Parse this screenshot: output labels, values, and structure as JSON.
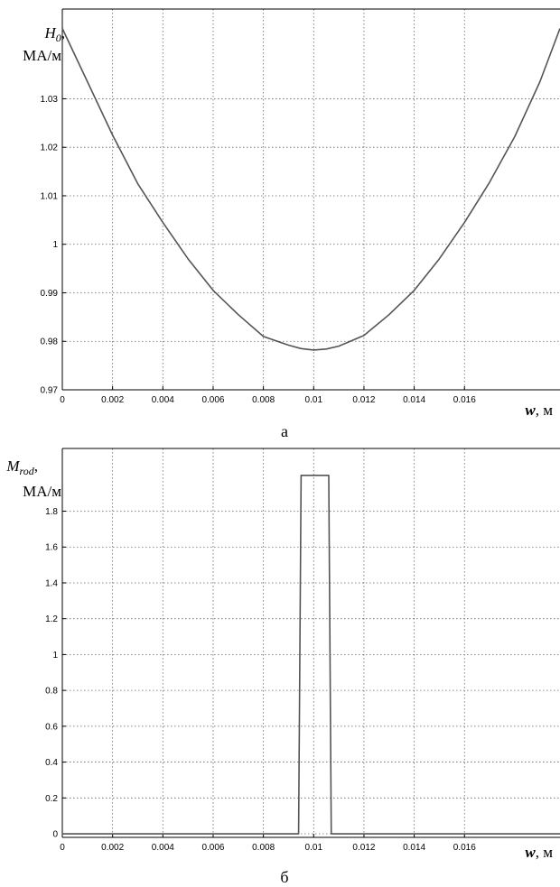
{
  "chart_data": [
    {
      "type": "line",
      "ylabel_symbol": "H",
      "ylabel_subscript": "0",
      "ylabel_suffix": ",",
      "ylabel_unit": "МА/м",
      "xlabel_symbol": "w",
      "xlabel_unit": ", м",
      "caption": "а",
      "xlim": [
        0,
        0.0198
      ],
      "ylim": [
        0.97,
        1.0485
      ],
      "xticks": [
        0,
        0.002,
        0.004,
        0.006,
        0.008,
        0.01,
        0.012,
        0.014,
        0.016
      ],
      "xtick_labels": [
        "0",
        "0.002",
        "0.004",
        "0.006",
        "0.008",
        "0.01",
        "0.012",
        "0.014",
        "0.016"
      ],
      "yticks": [
        0.97,
        0.98,
        0.99,
        1.0,
        1.01,
        1.02,
        1.03
      ],
      "ytick_labels": [
        "0.97",
        "0.98",
        "0.99",
        "1",
        "1.01",
        "1.02",
        "1.03"
      ],
      "grid": true,
      "series": [
        {
          "x": [
            0,
            0.001,
            0.002,
            0.003,
            0.004,
            0.005,
            0.006,
            0.007,
            0.008,
            0.009,
            0.0095,
            0.01,
            0.0105,
            0.011,
            0.012,
            0.013,
            0.014,
            0.015,
            0.016,
            0.017,
            0.018,
            0.019,
            0.0198
          ],
          "y": [
            1.0445,
            1.0335,
            1.0225,
            1.0125,
            1.0045,
            0.997,
            0.9905,
            0.9855,
            0.981,
            0.9792,
            0.9785,
            0.9782,
            0.9784,
            0.979,
            0.9812,
            0.9855,
            0.9905,
            0.997,
            1.0045,
            1.0128,
            1.0222,
            1.0335,
            1.0445
          ]
        }
      ]
    },
    {
      "type": "line",
      "ylabel_symbol": "M",
      "ylabel_subscript": "rod",
      "ylabel_suffix": ",",
      "ylabel_unit": "МА/м",
      "xlabel_symbol": "w",
      "xlabel_unit": ", м",
      "caption": "б",
      "xlim": [
        0,
        0.0198
      ],
      "ylim": [
        -0.02,
        2.15
      ],
      "xticks": [
        0,
        0.002,
        0.004,
        0.006,
        0.008,
        0.01,
        0.012,
        0.014,
        0.016
      ],
      "xtick_labels": [
        "0",
        "0.002",
        "0.004",
        "0.006",
        "0.008",
        "0.01",
        "0.012",
        "0.014",
        "0.016"
      ],
      "yticks": [
        0,
        0.2,
        0.4,
        0.6,
        0.8,
        1,
        1.2,
        1.4,
        1.6,
        1.8
      ],
      "ytick_labels": [
        "0",
        "0.2",
        "0.4",
        "0.6",
        "0.8",
        "1",
        "1.2",
        "1.4",
        "1.6",
        "1.8"
      ],
      "grid": true,
      "series": [
        {
          "x": [
            0,
            0.0094,
            0.0095,
            0.0106,
            0.0107,
            0.0198
          ],
          "y": [
            0,
            0,
            2.0,
            2.0,
            0,
            0
          ]
        }
      ]
    }
  ]
}
